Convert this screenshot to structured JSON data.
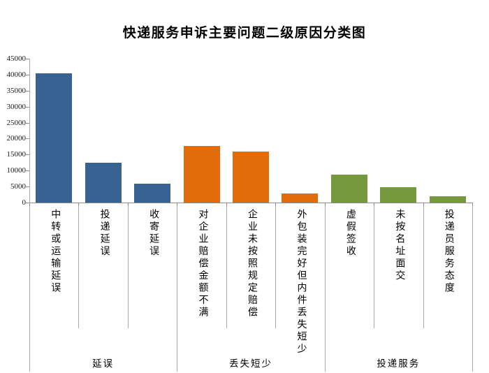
{
  "chart_data": {
    "type": "bar",
    "title": "快递服务申诉主要问题二级原因分类图",
    "xlabel": "",
    "ylabel": "",
    "ylim": [
      0,
      45000
    ],
    "y_tick_step": 5000,
    "y_tick_labels": [
      "0",
      "5000",
      "10000",
      "15000",
      "20000",
      "25000",
      "30000",
      "35000",
      "40000",
      "45000"
    ],
    "grid": false,
    "legend": "none",
    "categories": [
      "中转或运输延误",
      "投递延误",
      "收寄延误",
      "对企业赔偿金额不满",
      "企业未按照规定赔偿",
      "外包装完好但内件丢失短少",
      "虚假签收",
      "未按名址面交",
      "投递员服务态度"
    ],
    "values": [
      40400,
      12500,
      5900,
      17600,
      15900,
      2900,
      8800,
      4900,
      1900
    ],
    "group_labels": [
      "延误",
      "丢失短少",
      "投递服务"
    ],
    "group_sizes": [
      3,
      3,
      3
    ],
    "group_colors": [
      "#376291",
      "#E36C0A",
      "#77993D"
    ],
    "axis_color": "#8c8c8c",
    "separator_color": "#a9a9a9"
  }
}
